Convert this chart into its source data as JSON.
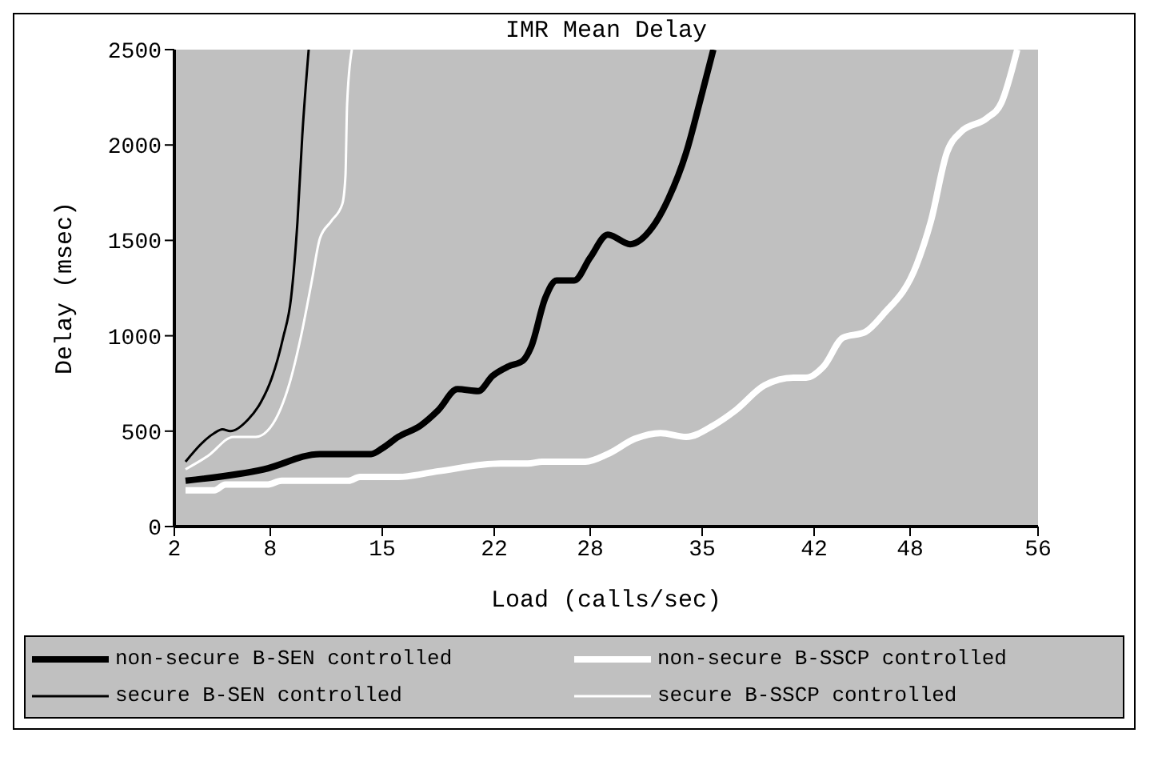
{
  "chart_data": {
    "type": "line",
    "title": "IMR Mean Delay",
    "xlabel": "Load (calls/sec)",
    "ylabel": "Delay (msec)",
    "xlim": [
      2,
      56
    ],
    "xticks": [
      2,
      8,
      15,
      22,
      28,
      35,
      42,
      48,
      56
    ],
    "ylim": [
      0,
      2500
    ],
    "yticks": [
      0,
      500,
      1000,
      1500,
      2000,
      2500
    ],
    "grid": false,
    "legend": "bottom",
    "marker": "none",
    "line_style": "solid",
    "series": [
      {
        "name": "non-secure B-SEN controlled",
        "color": "#000000",
        "x": [
          2.7,
          7.6,
          11.1,
          14.3,
          15,
          16,
          17.4,
          18.5,
          19.7,
          21,
          21.9,
          22.9,
          23.8,
          24.3,
          25.2,
          25.9,
          27,
          28,
          29.1,
          30.5,
          31.9,
          32.9,
          34,
          34.9,
          35.7
        ],
        "values": [
          240,
          300,
          380,
          380,
          410,
          470,
          530,
          610,
          720,
          710,
          790,
          840,
          870,
          940,
          1200,
          1290,
          1290,
          1410,
          1530,
          1480,
          1570,
          1720,
          1960,
          2240,
          2500
        ]
      },
      {
        "name": "non-secure B-SSCP controlled",
        "color": "#ffffff",
        "x": [
          2.7,
          4.5,
          5.2,
          7.8,
          8.7,
          12.9,
          13.6,
          16,
          18.5,
          22.4,
          24.1,
          25,
          27.7,
          29.1,
          30.8,
          32.4,
          34,
          35.7,
          37.1,
          38.9,
          40.7,
          41.5,
          42.6,
          43.8,
          45.2,
          46.3,
          48.4,
          49.3,
          50.3,
          51.2,
          52.8,
          53.7,
          54.7
        ],
        "values": [
          190,
          190,
          220,
          220,
          240,
          240,
          260,
          260,
          290,
          330,
          330,
          340,
          340,
          380,
          460,
          490,
          470,
          530,
          610,
          740,
          780,
          780,
          840,
          990,
          1020,
          1110,
          1370,
          1600,
          1960,
          2070,
          2140,
          2220,
          2500
        ]
      },
      {
        "name": "secure B-SEN controlled",
        "color": "#000000",
        "x": [
          2.7,
          4.5,
          5,
          5.5,
          6.6,
          7.4,
          8.1,
          8.8,
          9.3,
          9.7,
          10,
          10.4
        ],
        "values": [
          340,
          490,
          510,
          500,
          560,
          650,
          780,
          990,
          1200,
          1600,
          2050,
          2500
        ]
      },
      {
        "name": "secure B-SSCP controlled",
        "color": "#ffffff",
        "x": [
          2.7,
          4.1,
          5.7,
          7.1,
          7.8,
          8.5,
          9.2,
          9.9,
          10.6,
          11.1,
          11.8,
          12.5,
          12.7,
          12.8,
          13.1
        ],
        "values": [
          300,
          370,
          470,
          470,
          500,
          590,
          750,
          990,
          1290,
          1510,
          1600,
          1690,
          1840,
          2210,
          2500
        ]
      }
    ]
  }
}
